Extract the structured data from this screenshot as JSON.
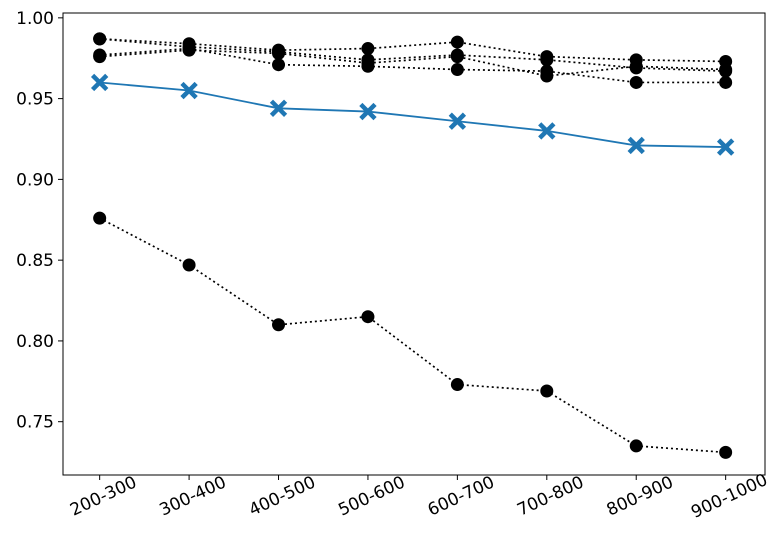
{
  "chart_data": {
    "type": "line",
    "title": "",
    "xlabel": "",
    "ylabel": "",
    "categories": [
      "200-300",
      "300-400",
      "400-500",
      "500-600",
      "600-700",
      "700-800",
      "800-900",
      "900-1000"
    ],
    "ylim": [
      0.717,
      1.003
    ],
    "yticks": [
      0.75,
      0.8,
      0.85,
      0.9,
      0.95,
      1.0
    ],
    "ytick_labels": [
      "0.75",
      "0.80",
      "0.85",
      "0.90",
      "0.95",
      "1.00"
    ],
    "grid": false,
    "legend": "none",
    "series": [
      {
        "values": [
          0.96,
          0.955,
          0.944,
          0.942,
          0.936,
          0.93,
          0.921,
          0.92
        ],
        "color": "#1f77b4",
        "style": "solid",
        "marker": "x-filled"
      },
      {
        "values": [
          0.876,
          0.847,
          0.81,
          0.815,
          0.773,
          0.769,
          0.735,
          0.731
        ],
        "color": "#000000",
        "style": "dotted",
        "marker": "circle"
      },
      {
        "values": [
          0.987,
          0.984,
          0.98,
          0.981,
          0.985,
          0.976,
          0.974,
          0.973
        ],
        "color": "#000000",
        "style": "dotted",
        "marker": "circle"
      },
      {
        "values": [
          0.987,
          0.982,
          0.979,
          0.974,
          0.977,
          0.974,
          0.969,
          0.967
        ],
        "color": "#000000",
        "style": "dotted",
        "marker": "circle"
      },
      {
        "values": [
          0.977,
          0.981,
          0.971,
          0.97,
          0.968,
          0.967,
          0.96,
          0.96
        ],
        "color": "#000000",
        "style": "dotted",
        "marker": "circle"
      },
      {
        "values": [
          0.976,
          0.98,
          0.978,
          0.972,
          0.976,
          0.964,
          0.97,
          0.968
        ],
        "color": "#000000",
        "style": "dotted",
        "marker": "circle"
      }
    ]
  }
}
